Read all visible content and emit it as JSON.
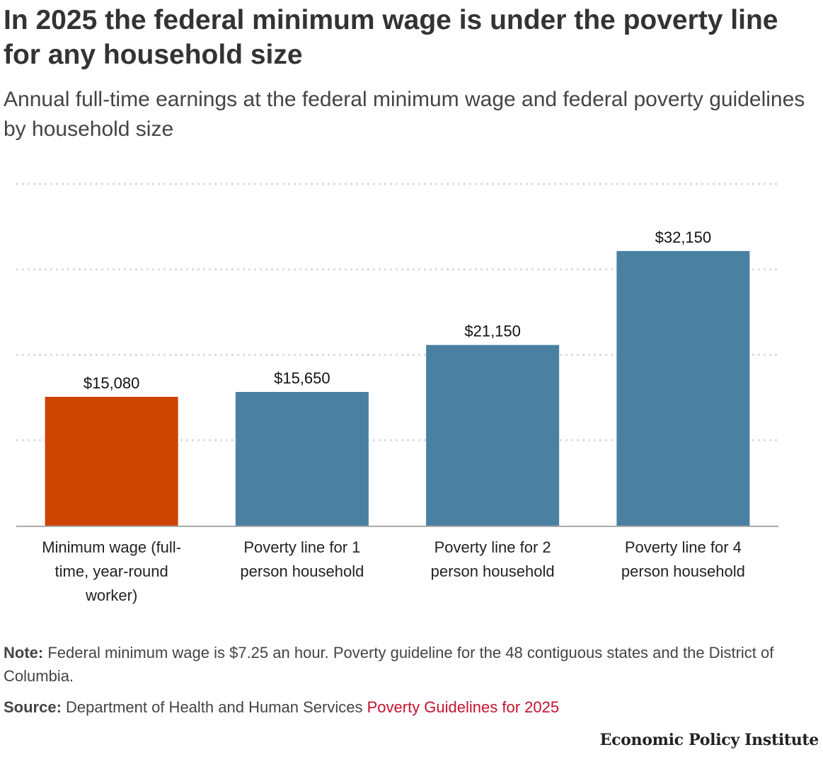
{
  "header": {
    "title": "In 2025 the federal minimum wage is under the poverty line for any household size",
    "subtitle": "Annual full-time earnings at the federal minimum wage and federal poverty guidelines by household size"
  },
  "chart_data": {
    "type": "bar",
    "title": "In 2025 the federal minimum wage is under the poverty line for any household size",
    "subtitle": "Annual full-time earnings at the federal minimum wage and federal poverty guidelines by household size",
    "categories": [
      [
        "Minimum wage (full-",
        "time, year-round",
        "worker)"
      ],
      [
        "Poverty line for 1",
        "person household"
      ],
      [
        "Poverty line for 2",
        "person household"
      ],
      [
        "Poverty line for 4",
        "person household"
      ]
    ],
    "values": [
      15080,
      15650,
      21150,
      32150
    ],
    "value_labels": [
      "$15,080",
      "$15,650",
      "$21,150",
      "$32,150"
    ],
    "colors": [
      "#cc4400",
      "#4a81a3",
      "#4a81a3",
      "#4a81a3"
    ],
    "gridline_color": "#dddddd",
    "baseline_color": "#aaaaaa",
    "ylim": [
      0,
      40000
    ],
    "gridlines": [
      10000,
      20000,
      30000,
      40000
    ],
    "xlabel": "",
    "ylabel": "",
    "grid": true
  },
  "footer": {
    "note_label": "Note:",
    "note_text": "Federal minimum wage is $7.25 an hour. Poverty guideline for the 48 contiguous states and the District of Columbia.",
    "source_label": "Source:",
    "source_text": "Department of Health and Human Services",
    "source_link": "Poverty Guidelines for 2025",
    "brand": "Economic Policy Institute"
  }
}
